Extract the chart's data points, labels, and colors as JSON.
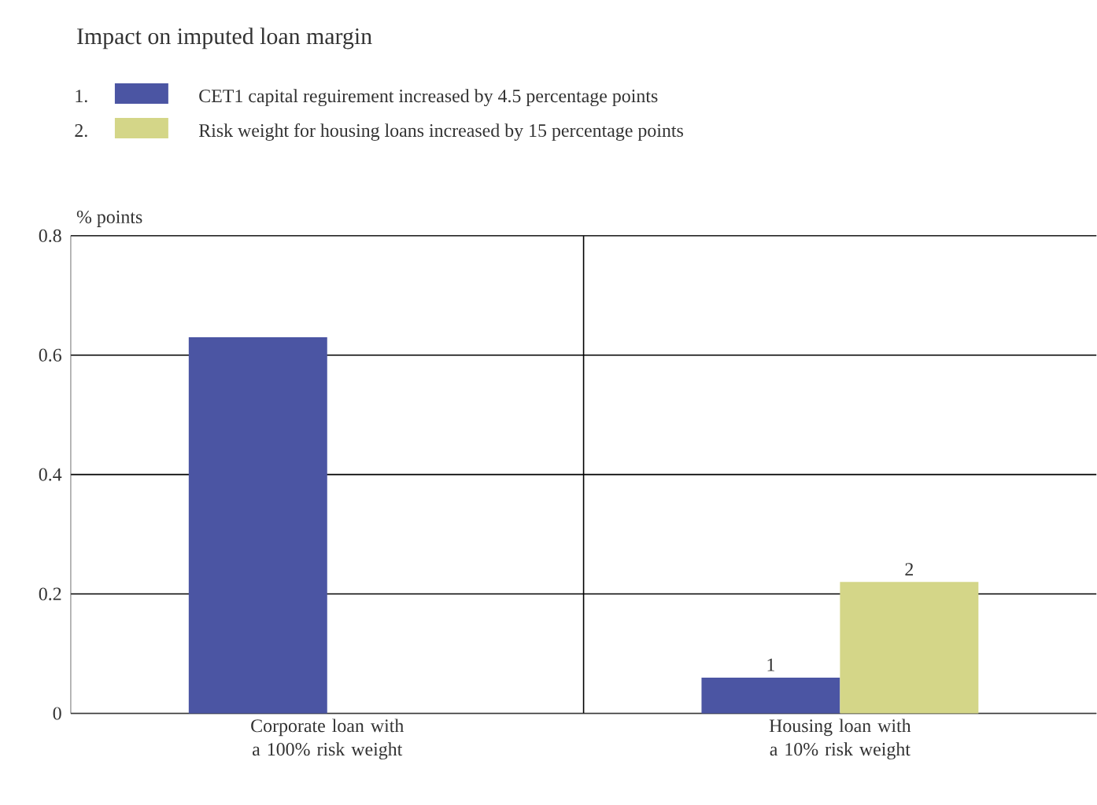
{
  "chart_data": {
    "type": "bar",
    "title": "Impact on imputed loan margin",
    "ylabel": "% points",
    "categories": [
      "Corporate loan with a 100% risk weight",
      "Housing loan with a 10% risk weight"
    ],
    "series": [
      {
        "name": "CET1 capital reguirement increased by 4.5 percentage points",
        "color": "#4b55a3",
        "values": [
          0.63,
          0.06
        ]
      },
      {
        "name": "Risk weight for housing loans increased by 15 percentage points",
        "color": "#d4d688",
        "values": [
          null,
          0.22
        ]
      }
    ],
    "annotations": [
      "1.",
      "2.",
      "1",
      "2"
    ],
    "ylim": [
      0,
      0.8
    ],
    "yticks": [
      0,
      0.2,
      0.4,
      0.6,
      0.8
    ],
    "grid": "y",
    "legend": "top left"
  }
}
